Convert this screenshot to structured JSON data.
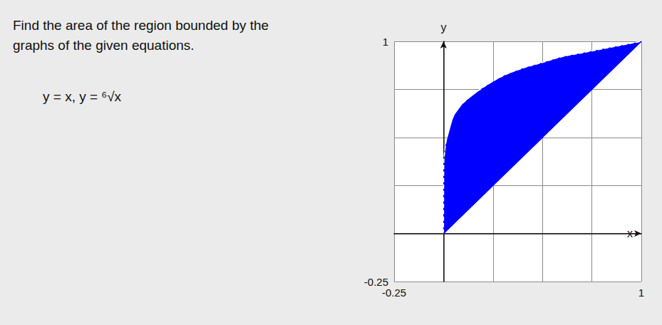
{
  "question": {
    "lines": [
      "Find the area of the region bounded by the",
      "graphs of the given equations."
    ],
    "equations": "y = x, y = ⁶√x"
  },
  "chart_data": {
    "type": "area",
    "xlabel": "x",
    "ylabel": "y",
    "color": "#0000ff",
    "xlim": [
      -0.25,
      1
    ],
    "ylim": [
      -0.25,
      1
    ],
    "xticks": [
      -0.25,
      {
        "value": 0,
        "label": null
      },
      {
        "value": 0.25,
        "label": null
      },
      {
        "value": 0.5,
        "label": null
      },
      {
        "value": 0.75,
        "label": null
      },
      1
    ],
    "yticks": [
      -0.25,
      {
        "value": 0,
        "label": null
      },
      {
        "value": 0.25,
        "label": null
      },
      {
        "value": 0.5,
        "label": null
      },
      {
        "value": 0.75,
        "label": null
      },
      1
    ],
    "grid": true,
    "series": [
      {
        "x": [
          0,
          0.001,
          0.01,
          0.05,
          0.1,
          0.2,
          0.3,
          0.4,
          0.5,
          0.6,
          0.7,
          0.8,
          0.9,
          1
        ],
        "values": [
          0,
          0.32,
          0.46,
          0.61,
          0.68,
          0.76,
          0.82,
          0.86,
          0.89,
          0.92,
          0.94,
          0.96,
          0.98,
          1
        ],
        "color": "#ffffff",
        "line_style": "dashed"
      },
      {
        "x": [
          0,
          1
        ],
        "values": [
          0,
          1
        ],
        "color": "#0000ff",
        "line_style": "solid"
      }
    ]
  }
}
